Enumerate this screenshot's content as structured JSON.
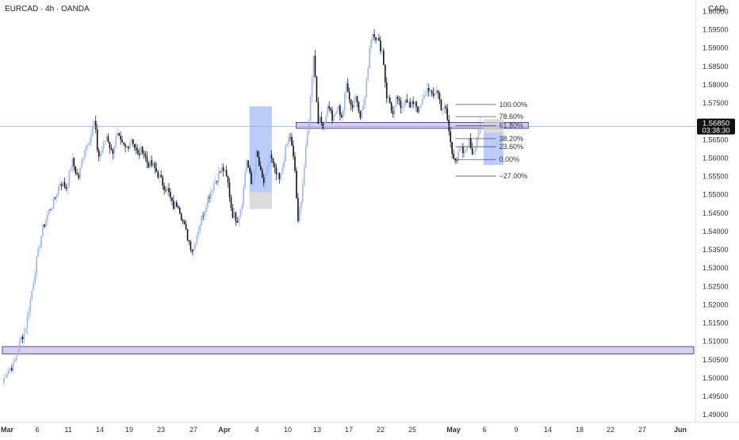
{
  "header": {
    "title": "EURCAD · 4h · OANDA"
  },
  "price_axis": {
    "currency": "CAD",
    "current_price": "1.56850",
    "countdown": "03:38:30"
  },
  "colors": {
    "candle_up": "#9bb7f0",
    "candle_down": "#111111",
    "zone_fill": "#d9cff0",
    "zone_border": "#5a4b8a",
    "highlight_blue": "#7fa3f5",
    "highlight_grey": "#d0d0d0",
    "axis_text": "#333333",
    "fib_line": "#555555"
  },
  "chart_data": {
    "type": "candlestick",
    "symbol": "EURCAD",
    "timeframe": "4h",
    "broker": "OANDA",
    "ylim": [
      1.488,
      1.603
    ],
    "y_ticks": [
      "1.60000",
      "1.59500",
      "1.59000",
      "1.58500",
      "1.58000",
      "1.57500",
      "1.57000",
      "1.56500",
      "1.56000",
      "1.55500",
      "1.55000",
      "1.54500",
      "1.54000",
      "1.53500",
      "1.53000",
      "1.52500",
      "1.52000",
      "1.51500",
      "1.51000",
      "1.50500",
      "1.50000",
      "1.49500",
      "1.49000"
    ],
    "x_ticks": [
      "Mar",
      "6",
      "11",
      "14",
      "19",
      "23",
      "27",
      "Apr",
      "4",
      "10",
      "13",
      "17",
      "22",
      "25",
      "May",
      "6",
      "9",
      "14",
      "18",
      "22",
      "27",
      "Jun"
    ],
    "x_ticks_bold": [
      "Mar",
      "Apr",
      "May",
      "Jun"
    ],
    "price_path": [
      [
        0,
        1.4985
      ],
      [
        0.6,
        1.5015
      ],
      [
        1.8,
        1.5035
      ],
      [
        3.0,
        1.5108
      ],
      [
        3.6,
        1.5125
      ],
      [
        4.5,
        1.5212
      ],
      [
        5.4,
        1.531
      ],
      [
        6.4,
        1.5402
      ],
      [
        7.4,
        1.5452
      ],
      [
        8.3,
        1.5482
      ],
      [
        9.3,
        1.5535
      ],
      [
        10.3,
        1.5518
      ],
      [
        11.2,
        1.5592
      ],
      [
        12.2,
        1.5542
      ],
      [
        13.2,
        1.5625
      ],
      [
        14.2,
        1.566
      ],
      [
        14.8,
        1.57
      ],
      [
        15.4,
        1.56
      ],
      [
        16.2,
        1.5632
      ],
      [
        16.8,
        1.5662
      ],
      [
        17.6,
        1.561
      ],
      [
        18.4,
        1.5662
      ],
      [
        19.1,
        1.5635
      ],
      [
        19.9,
        1.5625
      ],
      [
        20.8,
        1.5655
      ],
      [
        21.7,
        1.5605
      ],
      [
        22.5,
        1.5625
      ],
      [
        23.3,
        1.5585
      ],
      [
        24.2,
        1.5578
      ],
      [
        25.0,
        1.5555
      ],
      [
        25.8,
        1.5528
      ],
      [
        26.6,
        1.551
      ],
      [
        27.4,
        1.5465
      ],
      [
        28.2,
        1.5478
      ],
      [
        29.0,
        1.5425
      ],
      [
        29.8,
        1.538
      ],
      [
        30.6,
        1.5345
      ],
      [
        31.3,
        1.5395
      ],
      [
        32.1,
        1.544
      ],
      [
        32.9,
        1.5485
      ],
      [
        33.7,
        1.5518
      ],
      [
        34.5,
        1.5548
      ],
      [
        35.4,
        1.5572
      ],
      [
        36.2,
        1.5535
      ],
      [
        36.9,
        1.5448
      ],
      [
        37.8,
        1.5432
      ],
      [
        38.6,
        1.5488
      ],
      [
        39.2,
        1.56
      ],
      [
        40.1,
        1.5518
      ],
      [
        40.8,
        1.5615
      ],
      [
        41.6,
        1.5548
      ],
      [
        42.1,
        1.5528
      ],
      [
        43.0,
        1.5608
      ],
      [
        43.8,
        1.556
      ],
      [
        44.6,
        1.5535
      ],
      [
        45.4,
        1.5615
      ],
      [
        46.2,
        1.5665
      ],
      [
        47.0,
        1.5565
      ],
      [
        47.5,
        1.5418
      ],
      [
        48.2,
        1.552
      ],
      [
        48.8,
        1.5628
      ],
      [
        49.4,
        1.5735
      ],
      [
        50.0,
        1.5885
      ],
      [
        50.7,
        1.5705
      ],
      [
        51.6,
        1.569
      ],
      [
        52.4,
        1.5748
      ],
      [
        53.1,
        1.5698
      ],
      [
        53.9,
        1.5738
      ],
      [
        54.6,
        1.571
      ],
      [
        55.3,
        1.5808
      ],
      [
        56.1,
        1.5735
      ],
      [
        56.8,
        1.577
      ],
      [
        57.6,
        1.5712
      ],
      [
        58.3,
        1.5768
      ],
      [
        59.1,
        1.592
      ],
      [
        59.6,
        1.5945
      ],
      [
        60.4,
        1.5915
      ],
      [
        61.1,
        1.5888
      ],
      [
        61.7,
        1.577
      ],
      [
        62.3,
        1.5748
      ],
      [
        62.8,
        1.5712
      ],
      [
        63.4,
        1.577
      ],
      [
        64.0,
        1.5728
      ],
      [
        64.8,
        1.5768
      ],
      [
        65.5,
        1.5735
      ],
      [
        66.2,
        1.5758
      ],
      [
        66.9,
        1.5725
      ],
      [
        67.6,
        1.5758
      ],
      [
        68.4,
        1.5795
      ],
      [
        69.1,
        1.576
      ],
      [
        69.8,
        1.579
      ],
      [
        70.5,
        1.5738
      ],
      [
        71.3,
        1.5728
      ],
      [
        71.8,
        1.5665
      ],
      [
        72.2,
        1.5615
      ],
      [
        73.0,
        1.5595
      ],
      [
        73.6,
        1.5625
      ],
      [
        74.2,
        1.5608
      ],
      [
        74.9,
        1.565
      ],
      [
        75.6,
        1.561
      ],
      [
        76.1,
        1.565
      ],
      [
        76.8,
        1.5685
      ]
    ],
    "horizontal_zones": [
      {
        "price_low": 1.568,
        "price_high": 1.5696,
        "x_from": 47.2,
        "x_to": 84.5,
        "label": ""
      },
      {
        "price_low": 1.5065,
        "price_high": 1.5085,
        "x_from": 0,
        "x_to": 111.6,
        "label": ""
      }
    ],
    "highlight_boxes": [
      {
        "color": "blue",
        "x_from": 39.7,
        "x_to": 43.3,
        "price_low": 1.5505,
        "price_high": 1.574
      },
      {
        "color": "grey",
        "x_from": 39.7,
        "x_to": 43.3,
        "price_low": 1.546,
        "price_high": 1.5508
      },
      {
        "color": "blue",
        "x_from": 77.3,
        "x_to": 80.5,
        "price_low": 1.558,
        "price_high": 1.5668
      },
      {
        "color": "grey",
        "x_from": 77.3,
        "x_to": 80.5,
        "price_low": 1.5668,
        "price_high": 1.5705
      }
    ],
    "fibonacci": {
      "x_from": 72.8,
      "x_to": 79.3,
      "levels": [
        {
          "label": "100.00%",
          "price": 1.5745
        },
        {
          "label": "78.60%",
          "price": 1.5712
        },
        {
          "label": "61.80%",
          "price": 1.5687
        },
        {
          "label": "38.20%",
          "price": 1.5652
        },
        {
          "label": "23.60%",
          "price": 1.563
        },
        {
          "label": "0.00%",
          "price": 1.5595
        },
        {
          "label": "−27.00%",
          "price": 1.555
        }
      ]
    },
    "current_price_line": 1.5685
  }
}
